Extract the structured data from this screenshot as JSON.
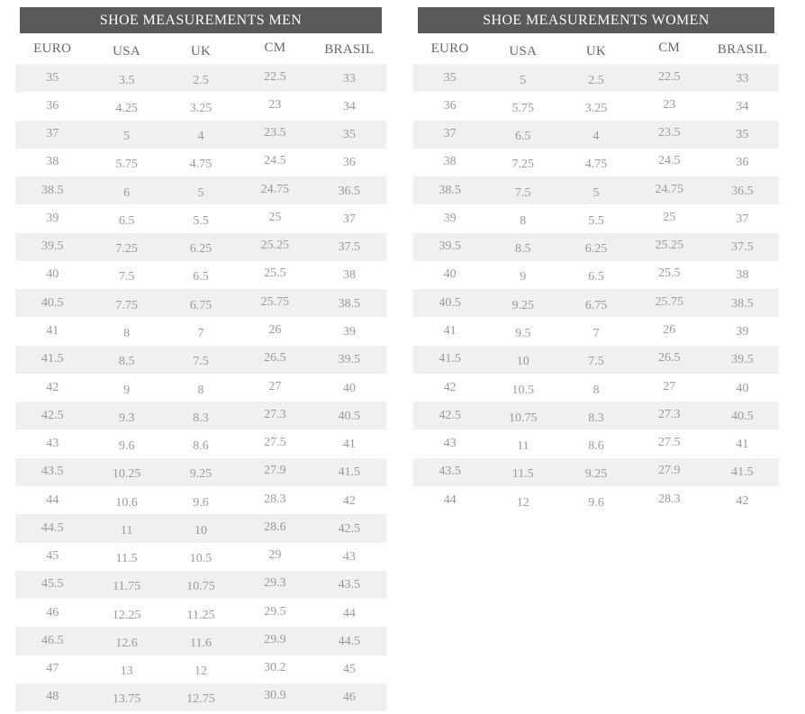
{
  "colors": {
    "header_bg": "#59595b",
    "title_text": "#ffffff",
    "col_header_text": "#666666",
    "cell_text": "#9a9a9a",
    "row_alt_bg": "#f0f0f0",
    "page_bg": "#ffffff"
  },
  "chart_data": [
    {
      "type": "table",
      "title": "SHOE MEASUREMENTS MEN",
      "columns": [
        "EURO",
        "USA",
        "UK",
        "CM",
        "BRASIL"
      ],
      "rows": [
        [
          "35",
          "3.5",
          "2.5",
          "22.5",
          "33"
        ],
        [
          "36",
          "4.25",
          "3.25",
          "23",
          "34"
        ],
        [
          "37",
          "5",
          "4",
          "23.5",
          "35"
        ],
        [
          "38",
          "5.75",
          "4.75",
          "24.5",
          "36"
        ],
        [
          "38.5",
          "6",
          "5",
          "24.75",
          "36.5"
        ],
        [
          "39",
          "6.5",
          "5.5",
          "25",
          "37"
        ],
        [
          "39.5",
          "7.25",
          "6.25",
          "25.25",
          "37.5"
        ],
        [
          "40",
          "7.5",
          "6.5",
          "25.5",
          "38"
        ],
        [
          "40.5",
          "7.75",
          "6.75",
          "25.75",
          "38.5"
        ],
        [
          "41",
          "8",
          "7",
          "26",
          "39"
        ],
        [
          "41.5",
          "8.5",
          "7.5",
          "26.5",
          "39.5"
        ],
        [
          "42",
          "9",
          "8",
          "27",
          "40"
        ],
        [
          "42.5",
          "9.3",
          "8.3",
          "27.3",
          "40.5"
        ],
        [
          "43",
          "9.6",
          "8.6",
          "27.5",
          "41"
        ],
        [
          "43.5",
          "10.25",
          "9.25",
          "27.9",
          "41.5"
        ],
        [
          "44",
          "10.6",
          "9.6",
          "28.3",
          "42"
        ],
        [
          "44.5",
          "11",
          "10",
          "28.6",
          "42.5"
        ],
        [
          "45",
          "11.5",
          "10.5",
          "29",
          "43"
        ],
        [
          "45.5",
          "11.75",
          "10.75",
          "29.3",
          "43.5"
        ],
        [
          "46",
          "12.25",
          "11.25",
          "29.5",
          "44"
        ],
        [
          "46.5",
          "12.6",
          "11.6",
          "29.9",
          "44.5"
        ],
        [
          "47",
          "13",
          "12",
          "30.2",
          "45"
        ],
        [
          "48",
          "13.75",
          "12.75",
          "30.9",
          "46"
        ]
      ]
    },
    {
      "type": "table",
      "title": "SHOE MEASUREMENTS WOMEN",
      "columns": [
        "EURO",
        "USA",
        "UK",
        "CM",
        "BRASIL"
      ],
      "rows": [
        [
          "35",
          "5",
          "2.5",
          "22.5",
          "33"
        ],
        [
          "36",
          "5.75",
          "3.25",
          "23",
          "34"
        ],
        [
          "37",
          "6.5",
          "4",
          "23.5",
          "35"
        ],
        [
          "38",
          "7.25",
          "4.75",
          "24.5",
          "36"
        ],
        [
          "38.5",
          "7.5",
          "5",
          "24.75",
          "36.5"
        ],
        [
          "39",
          "8",
          "5.5",
          "25",
          "37"
        ],
        [
          "39.5",
          "8.5",
          "6.25",
          "25.25",
          "37.5"
        ],
        [
          "40",
          "9",
          "6.5",
          "25.5",
          "38"
        ],
        [
          "40.5",
          "9.25",
          "6.75",
          "25.75",
          "38.5"
        ],
        [
          "41",
          "9.5",
          "7",
          "26",
          "39"
        ],
        [
          "41.5",
          "10",
          "7.5",
          "26.5",
          "39.5"
        ],
        [
          "42",
          "10.5",
          "8",
          "27",
          "40"
        ],
        [
          "42.5",
          "10.75",
          "8.3",
          "27.3",
          "40.5"
        ],
        [
          "43",
          "11",
          "8.6",
          "27.5",
          "41"
        ],
        [
          "43.5",
          "11.5",
          "9.25",
          "27.9",
          "41.5"
        ],
        [
          "44",
          "12",
          "9.6",
          "28.3",
          "42"
        ]
      ]
    }
  ]
}
